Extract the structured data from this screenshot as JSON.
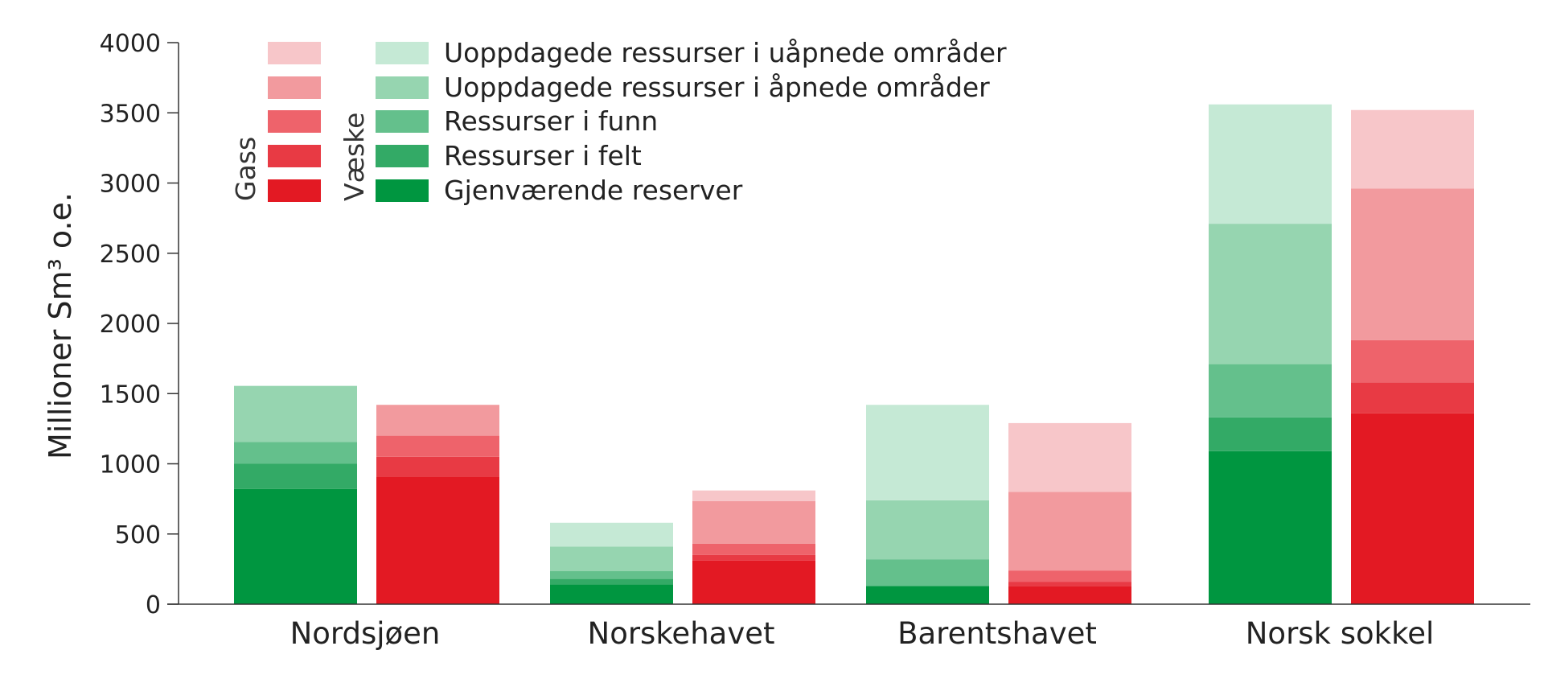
{
  "chart_data": {
    "type": "bar",
    "stacked": true,
    "ylabel": "Millioner Sm³ o.e.",
    "ylim": [
      0,
      4000
    ],
    "yticks": [
      0,
      500,
      1000,
      1500,
      2000,
      2500,
      3000,
      3500,
      4000
    ],
    "grid": false,
    "categories": [
      "Nordsjøen",
      "Norskehavet",
      "Barentshavet",
      "Norsk sokkel"
    ],
    "legend": {
      "placement": "top-left",
      "group_labels": [
        "Gass",
        "Væske"
      ],
      "entries": [
        "Uoppdagede ressurser i uåpnede områder",
        "Uoppdagede ressurser i åpnede områder",
        "Ressurser i funn",
        "Ressurser i felt",
        "Gjenværende reserver"
      ]
    },
    "groups": [
      {
        "name": "Væske",
        "series": [
          {
            "name": "Gjenværende reserver",
            "color": "#009640",
            "values": [
              820,
              140,
              130,
              1090
            ]
          },
          {
            "name": "Ressurser i felt",
            "color": "#33aa66",
            "values": [
              180,
              40,
              0,
              240
            ]
          },
          {
            "name": "Ressurser i funn",
            "color": "#64c08c",
            "values": [
              155,
              55,
              190,
              380
            ]
          },
          {
            "name": "Uoppdagede ressurser i åpnede områder",
            "color": "#96d5b0",
            "values": [
              400,
              175,
              420,
              1000
            ]
          },
          {
            "name": "Uoppdagede ressurser i uåpnede områder",
            "color": "#c5e9d5",
            "values": [
              0,
              170,
              680,
              850
            ]
          }
        ]
      },
      {
        "name": "Gass",
        "series": [
          {
            "name": "Gjenværende reserver",
            "color": "#e31923",
            "values": [
              910,
              310,
              130,
              1360
            ]
          },
          {
            "name": "Ressurser i felt",
            "color": "#e83a44",
            "values": [
              140,
              40,
              30,
              220
            ]
          },
          {
            "name": "Ressurser i funn",
            "color": "#ee636b",
            "values": [
              150,
              80,
              80,
              300
            ]
          },
          {
            "name": "Uoppdagede ressurser i åpnede områder",
            "color": "#f29a9e",
            "values": [
              220,
              305,
              560,
              1080
            ]
          },
          {
            "name": "Uoppdagede ressurser i uåpnede områder",
            "color": "#f7c6c9",
            "values": [
              0,
              75,
              490,
              560
            ]
          }
        ]
      }
    ]
  }
}
